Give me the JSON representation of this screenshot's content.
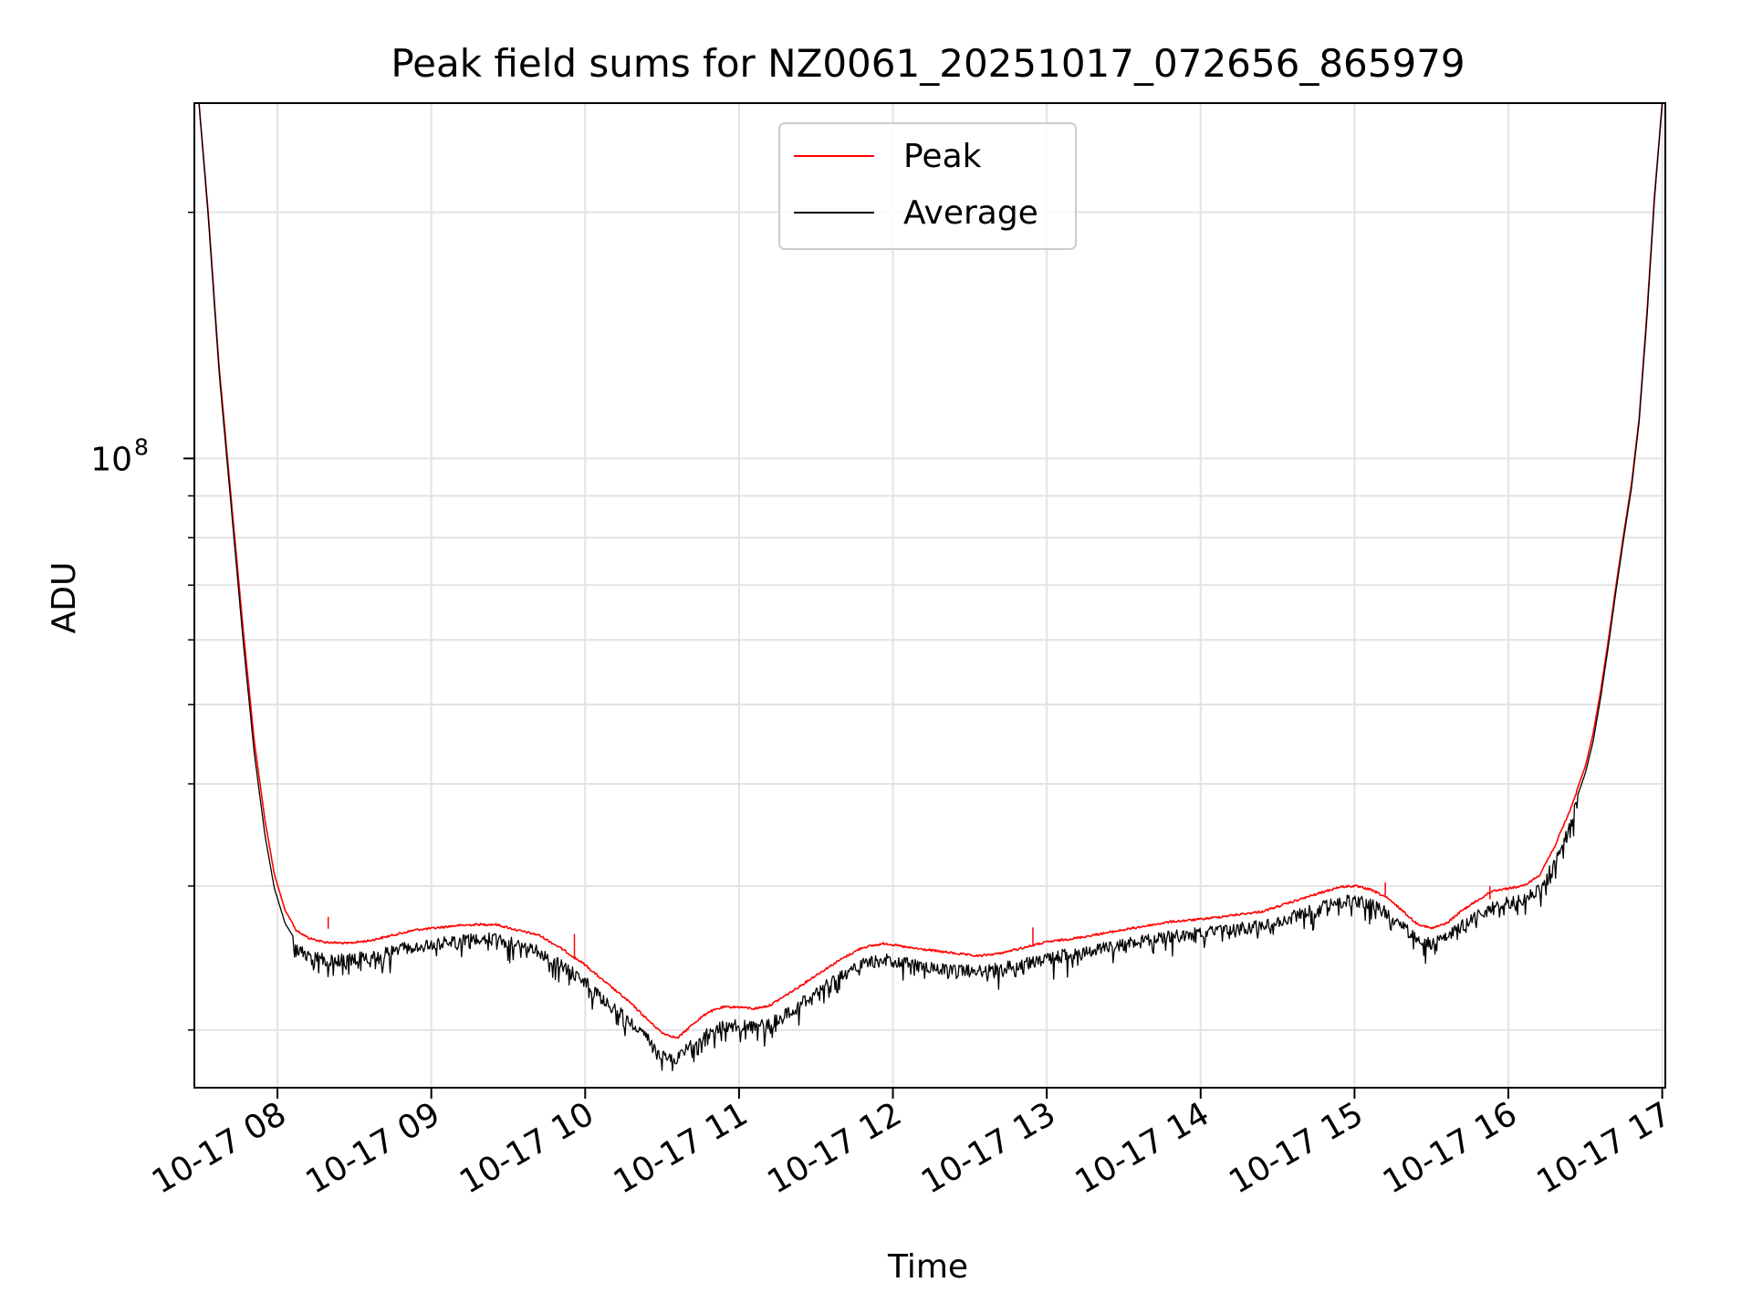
{
  "chart_data": {
    "type": "line",
    "title": "Peak field sums for NZ0061_20251017_072656_865979",
    "xlabel": "Time",
    "ylabel": "ADU",
    "yscale": "log",
    "ylim": [
      17000000,
      272000000
    ],
    "xlim_hours": [
      7.46,
      17.02
    ],
    "x_ticks": [
      {
        "hour": 8,
        "label": "10-17 08"
      },
      {
        "hour": 9,
        "label": "10-17 09"
      },
      {
        "hour": 10,
        "label": "10-17 10"
      },
      {
        "hour": 11,
        "label": "10-17 11"
      },
      {
        "hour": 12,
        "label": "10-17 12"
      },
      {
        "hour": 13,
        "label": "10-17 13"
      },
      {
        "hour": 14,
        "label": "10-17 14"
      },
      {
        "hour": 15,
        "label": "10-17 15"
      },
      {
        "hour": 16,
        "label": "10-17 16"
      },
      {
        "hour": 17,
        "label": "10-17 17"
      }
    ],
    "y_major_ticks": [
      {
        "value": 100000000,
        "base": "10",
        "exp": "8"
      }
    ],
    "y_minor_ticks": [
      20000000,
      30000000,
      40000000,
      50000000,
      60000000,
      70000000,
      80000000,
      90000000,
      200000000
    ],
    "grid": true,
    "legend": {
      "position": "top-center",
      "entries": [
        {
          "label": "Peak",
          "color": "#ff0000"
        },
        {
          "label": "Average",
          "color": "#000000"
        }
      ]
    },
    "series": [
      {
        "name": "Peak",
        "color": "#ff0000",
        "x_hours": [
          7.49,
          7.55,
          7.62,
          7.7,
          7.78,
          7.85,
          7.92,
          7.98,
          8.05,
          8.12,
          8.2,
          8.3,
          8.45,
          8.6,
          8.75,
          8.9,
          9.0,
          9.15,
          9.3,
          9.42,
          9.55,
          9.7,
          9.85,
          10.0,
          10.1,
          10.2,
          10.3,
          10.4,
          10.5,
          10.6,
          10.7,
          10.8,
          10.9,
          11.0,
          11.1,
          11.2,
          11.35,
          11.5,
          11.65,
          11.8,
          11.95,
          12.1,
          12.25,
          12.4,
          12.55,
          12.7,
          12.85,
          13.0,
          13.2,
          13.4,
          13.6,
          13.8,
          14.0,
          14.2,
          14.4,
          14.6,
          14.75,
          14.9,
          15.0,
          15.1,
          15.2,
          15.3,
          15.4,
          15.5,
          15.6,
          15.7,
          15.8,
          15.9,
          16.0,
          16.1,
          16.2,
          16.3,
          16.4,
          16.5,
          16.55,
          16.6,
          16.65,
          16.7,
          16.75,
          16.8,
          16.85,
          16.9,
          16.95,
          17.0
        ],
        "values_m": [
          272,
          200,
          130,
          89,
          61,
          45,
          36,
          31,
          28,
          26.6,
          26,
          25.7,
          25.6,
          25.8,
          26.2,
          26.6,
          26.7,
          26.9,
          27,
          27,
          26.6,
          26.2,
          25.2,
          24.1,
          23.2,
          22.4,
          21.6,
          20.7,
          19.9,
          19.6,
          20.4,
          21.1,
          21.4,
          21.4,
          21.3,
          21.5,
          22.4,
          23.4,
          24.4,
          25.3,
          25.6,
          25.3,
          25.1,
          24.9,
          24.7,
          24.9,
          25.3,
          25.7,
          26,
          26.4,
          26.8,
          27.2,
          27.4,
          27.7,
          28,
          28.8,
          29.4,
          30,
          30.1,
          29.8,
          29.2,
          28.2,
          27.1,
          26.7,
          27.1,
          28.1,
          28.9,
          29.7,
          29.9,
          30.1,
          31,
          33.6,
          37.2,
          42,
          46,
          52,
          60,
          70,
          81,
          93,
          112,
          150,
          210,
          272
        ]
      },
      {
        "name": "Average",
        "color": "#000000",
        "x_hours": [
          7.49,
          7.55,
          7.62,
          7.7,
          7.78,
          7.85,
          7.92,
          7.98,
          8.05,
          8.12,
          8.2,
          8.3,
          8.45,
          8.6,
          8.75,
          8.9,
          9.0,
          9.15,
          9.3,
          9.42,
          9.55,
          9.7,
          9.85,
          10.0,
          10.1,
          10.2,
          10.3,
          10.4,
          10.5,
          10.6,
          10.7,
          10.8,
          10.9,
          11.0,
          11.1,
          11.2,
          11.35,
          11.5,
          11.65,
          11.8,
          11.95,
          12.1,
          12.25,
          12.4,
          12.55,
          12.7,
          12.85,
          13.0,
          13.2,
          13.4,
          13.6,
          13.8,
          14.0,
          14.2,
          14.4,
          14.6,
          14.75,
          14.9,
          15.0,
          15.1,
          15.2,
          15.3,
          15.4,
          15.5,
          15.6,
          15.7,
          15.8,
          15.9,
          16.0,
          16.1,
          16.2,
          16.3,
          16.4,
          16.5,
          16.55,
          16.6,
          16.65,
          16.7,
          16.75,
          16.8,
          16.85,
          16.9,
          16.95,
          17.0
        ],
        "values_m": [
          272,
          198,
          128,
          87,
          59,
          43.5,
          34.5,
          29.8,
          27,
          25.7,
          25.1,
          24.8,
          24.8,
          25,
          25.4,
          25.8,
          25.9,
          26.1,
          26.3,
          26.3,
          25.9,
          25.4,
          24.4,
          23.3,
          22.3,
          21.5,
          20.8,
          19.9,
          19,
          18.8,
          19.6,
          20.2,
          20.6,
          20.6,
          20.5,
          20.7,
          21.6,
          22.6,
          23.6,
          24.5,
          24.8,
          24.5,
          24.3,
          24.1,
          24,
          24.2,
          24.5,
          24.9,
          25.3,
          25.7,
          26.1,
          26.5,
          26.7,
          27,
          27.3,
          28,
          28.6,
          29.2,
          29.3,
          29,
          28.4,
          27.4,
          26.3,
          25.9,
          26.4,
          27.3,
          28.1,
          28.9,
          29.1,
          29.4,
          30.2,
          32.6,
          36.4,
          41.2,
          45,
          51,
          59,
          69,
          80,
          92,
          111,
          148,
          208,
          272
        ]
      }
    ]
  }
}
